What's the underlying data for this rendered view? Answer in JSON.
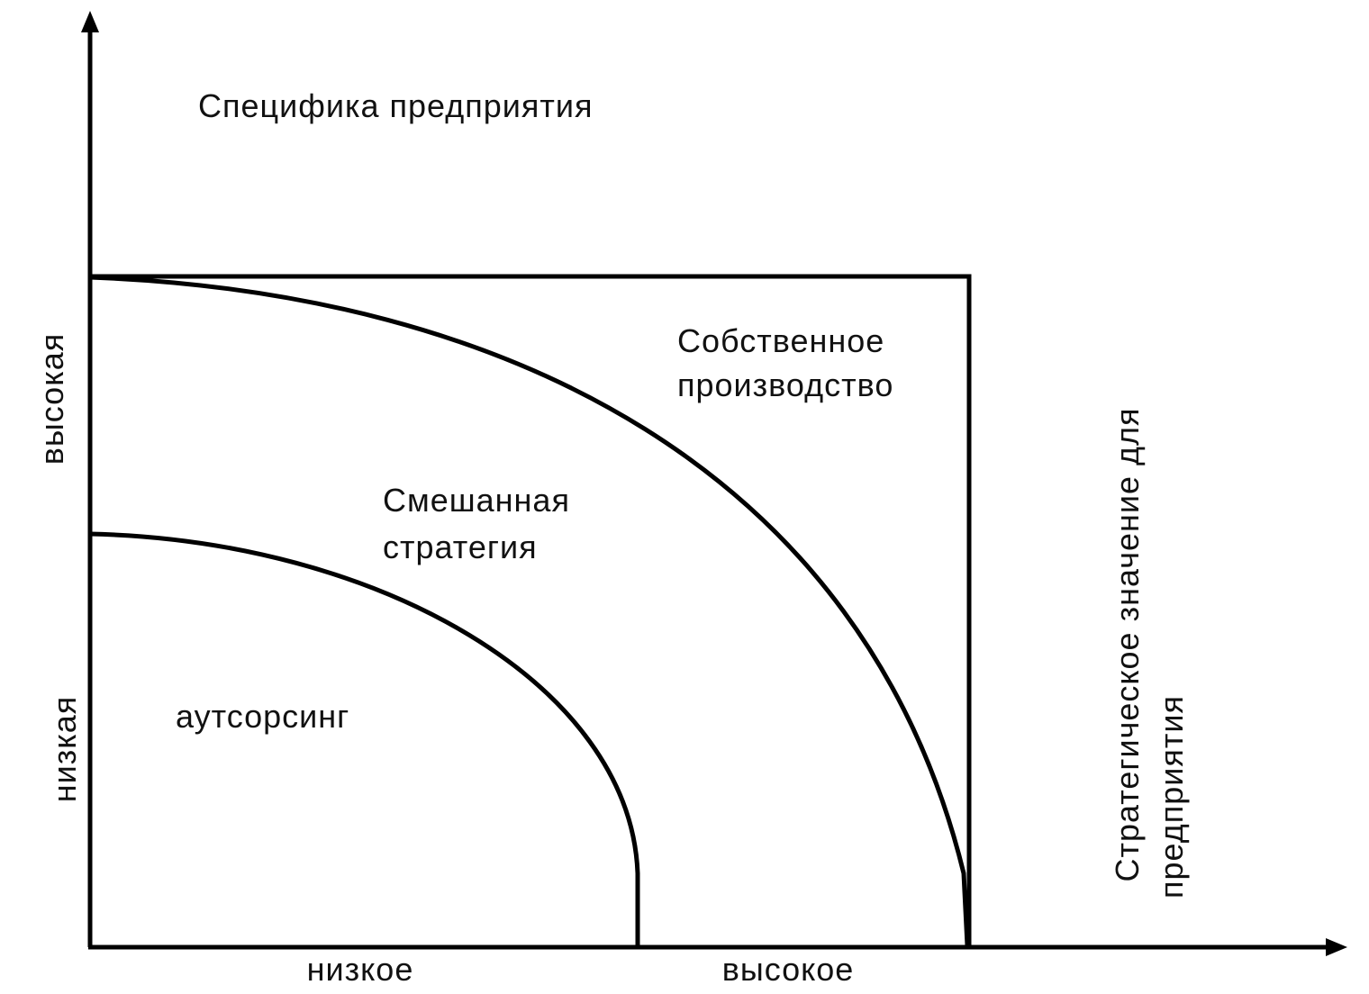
{
  "y_axis": {
    "title": "Специфика предприятия",
    "high_label": "высокая",
    "low_label": "низкая"
  },
  "x_axis": {
    "title_line1": "Стратегическое значение для",
    "title_line2": "предприятия",
    "low_label": "низкое",
    "high_label": "высокое"
  },
  "zones": {
    "own_line1": "Собственное",
    "own_line2": "производство",
    "mixed_line1": "Смешанная",
    "mixed_line2": "стратегия",
    "outsourcing": "аутсорсинг"
  },
  "colors": {
    "line": "#000000",
    "text": "#111111",
    "background": "#ffffff"
  }
}
